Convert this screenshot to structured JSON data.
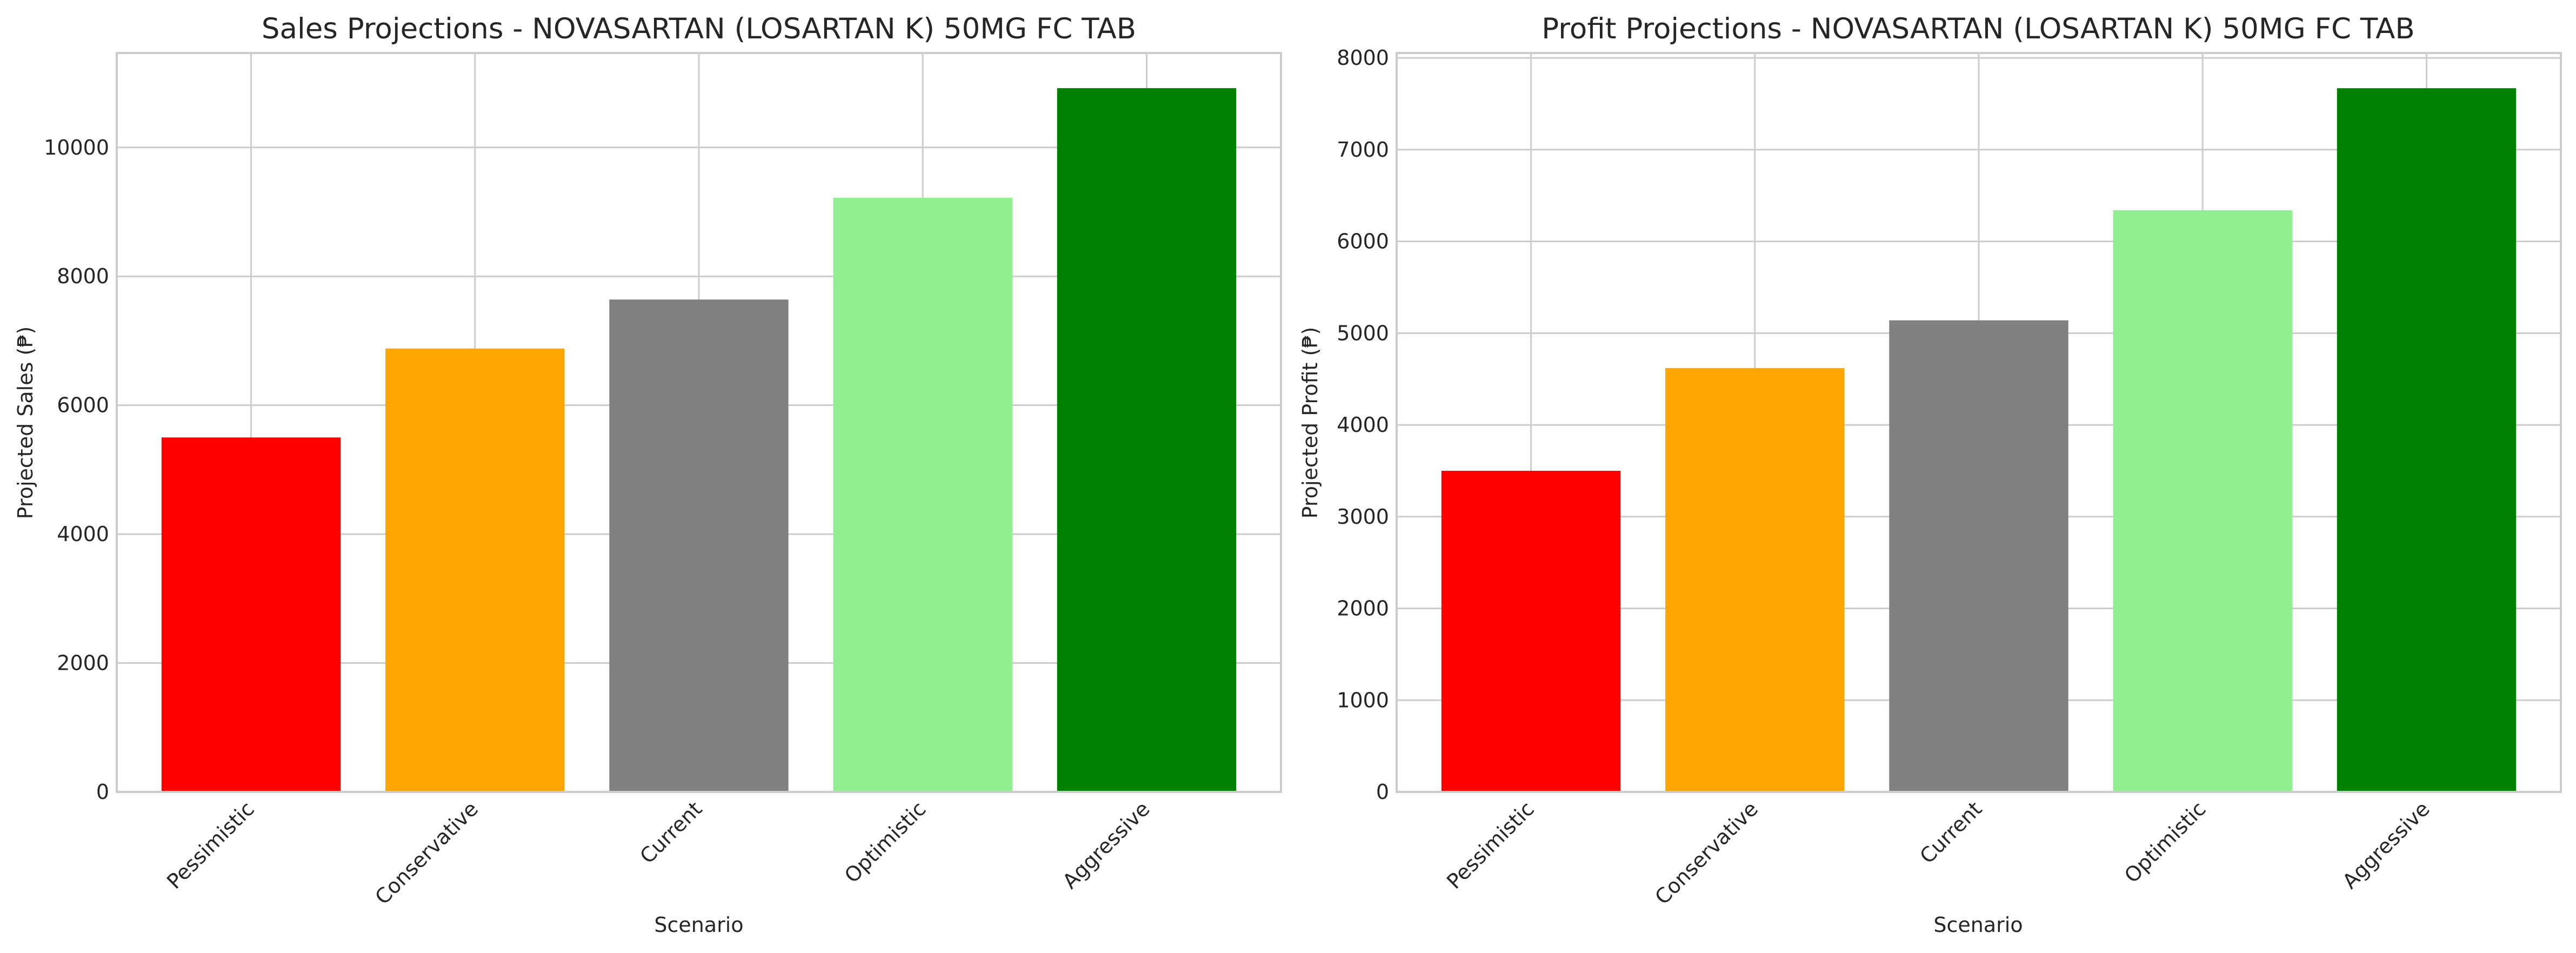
{
  "colors": {
    "Pessimistic": "#ff0000",
    "Conservative": "#ffa500",
    "Current": "#808080",
    "Optimistic": "#90ee90",
    "Aggressive": "#008000",
    "grid": "#cccccc",
    "frame": "#cccccc"
  },
  "chart_data": [
    {
      "type": "bar",
      "title": "Sales Projections - NOVASARTAN (LOSARTAN K) 50MG FC TAB",
      "xlabel": "Scenario",
      "ylabel": "Projected Sales (₱)",
      "categories": [
        "Pessimistic",
        "Conservative",
        "Current",
        "Optimistic",
        "Aggressive"
      ],
      "values": [
        5500,
        6880,
        7640,
        9220,
        10920
      ],
      "ylim": [
        0,
        11466
      ],
      "yticks": [
        0,
        2000,
        4000,
        6000,
        8000,
        10000
      ],
      "grid": true,
      "legend": "none"
    },
    {
      "type": "bar",
      "title": "Profit Projections - NOVASARTAN (LOSARTAN K) 50MG FC TAB",
      "xlabel": "Scenario",
      "ylabel": "Projected Profit (₱)",
      "categories": [
        "Pessimistic",
        "Conservative",
        "Current",
        "Optimistic",
        "Aggressive"
      ],
      "values": [
        3500,
        4620,
        5140,
        6340,
        7670
      ],
      "ylim": [
        0,
        8054
      ],
      "yticks": [
        0,
        1000,
        2000,
        3000,
        4000,
        5000,
        6000,
        7000,
        8000
      ],
      "grid": true,
      "legend": "none"
    }
  ]
}
